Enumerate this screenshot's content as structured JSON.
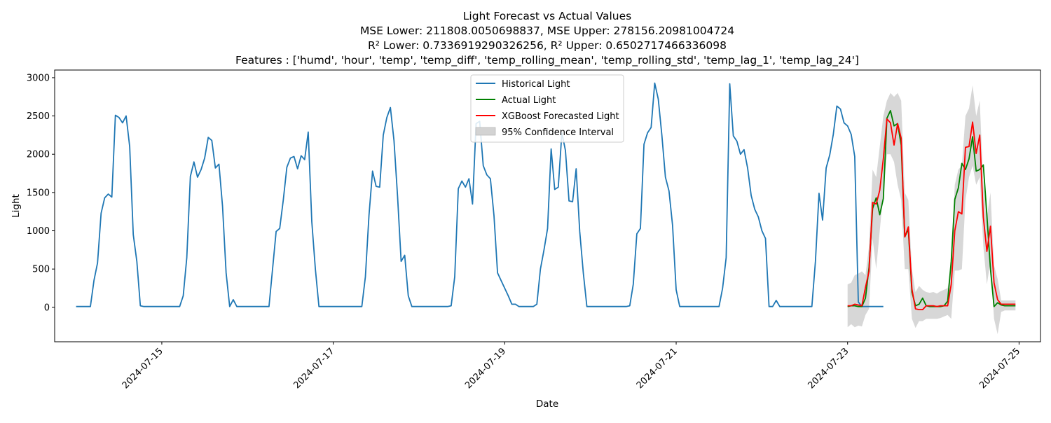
{
  "chart_data": {
    "type": "line",
    "title_lines": [
      "Light Forecast vs Actual Values",
      "MSE Lower: 211808.0050698837, MSE Upper: 278156.20981004724",
      "R² Lower: 0.7336919290326256, R² Upper: 0.6502717466336098",
      "Features : ['humd', 'hour', 'temp', 'temp_diff', 'temp_rolling_mean', 'temp_rolling_std', 'temp_lag_1', 'temp_lag_24']"
    ],
    "xlabel": "Date",
    "ylabel": "Light",
    "x_axis_type": "datetime",
    "xlim": [
      "2024-07-13T18:00",
      "2024-07-25T06:00"
    ],
    "ylim": [
      -450,
      3100
    ],
    "yticks": [
      0,
      500,
      1000,
      1500,
      2000,
      2500,
      3000
    ],
    "xticks": [
      "2024-07-15",
      "2024-07-17",
      "2024-07-19",
      "2024-07-21",
      "2024-07-23",
      "2024-07-25"
    ],
    "grid": false,
    "legend_position": "top-center",
    "colors": {
      "historical": "#1f77b4",
      "actual": "#008000",
      "forecast": "#ff0000",
      "confidence": "#d3d3d3"
    },
    "legend": [
      {
        "label": "Historical Light",
        "type": "line",
        "color": "#1f77b4"
      },
      {
        "label": "Actual Light",
        "type": "line",
        "color": "#008000"
      },
      {
        "label": "XGBoost Forecasted Light",
        "type": "line",
        "color": "#ff0000"
      },
      {
        "label": "95% Confidence Interval",
        "type": "patch",
        "color": "#d3d3d3"
      }
    ],
    "series": [
      {
        "name": "Historical Light",
        "start": "2024-07-14T00:00",
        "step_hours": 1,
        "values": [
          10,
          10,
          10,
          10,
          10,
          350,
          580,
          1230,
          1430,
          1480,
          1440,
          2510,
          2480,
          2410,
          2500,
          2100,
          950,
          600,
          20,
          10,
          10,
          10,
          10,
          10,
          10,
          10,
          10,
          10,
          10,
          10,
          150,
          650,
          1710,
          1900,
          1700,
          1800,
          1950,
          2220,
          2180,
          1820,
          1870,
          1320,
          450,
          10,
          100,
          10,
          10,
          10,
          10,
          10,
          10,
          10,
          10,
          10,
          10,
          500,
          990,
          1030,
          1400,
          1830,
          1950,
          1970,
          1810,
          1980,
          1930,
          2290,
          1120,
          500,
          10,
          10,
          10,
          10,
          10,
          10,
          10,
          10,
          10,
          10,
          10,
          10,
          10,
          400,
          1200,
          1780,
          1580,
          1570,
          2250,
          2480,
          2610,
          2180,
          1450,
          600,
          680,
          150,
          10,
          10,
          10,
          10,
          10,
          10,
          10,
          10,
          10,
          10,
          10,
          20,
          400,
          1550,
          1650,
          1570,
          1680,
          1350,
          2400,
          2430,
          1850,
          1730,
          1680,
          1200,
          450,
          350,
          250,
          150,
          40,
          40,
          10,
          10,
          10,
          10,
          10,
          40,
          500,
          750,
          1030,
          2070,
          1540,
          1570,
          2280,
          2050,
          1390,
          1380,
          1810,
          990,
          450,
          10,
          10,
          10,
          10,
          10,
          10,
          10,
          10,
          10,
          10,
          10,
          10,
          20,
          300,
          960,
          1030,
          2130,
          2280,
          2350,
          2930,
          2720,
          2250,
          1700,
          1520,
          1070,
          230,
          10,
          10,
          10,
          10,
          10,
          10,
          10,
          10,
          10,
          10,
          10,
          10,
          250,
          650,
          2920,
          2240,
          2170,
          2000,
          2060,
          1820,
          1460,
          1280,
          1180,
          1000,
          900,
          10,
          10,
          90,
          10,
          10,
          10,
          10,
          10,
          10,
          10,
          10,
          10,
          10,
          600,
          1490,
          1140,
          1820,
          1990,
          2260,
          2630,
          2590,
          2410,
          2370,
          2260,
          1970,
          70,
          10,
          10,
          10,
          10,
          10,
          10,
          10
        ]
      },
      {
        "name": "Actual Light",
        "start": "2024-07-23T00:00",
        "step_hours": 1,
        "values": [
          10,
          20,
          20,
          10,
          10,
          120,
          520,
          1290,
          1430,
          1210,
          1420,
          2470,
          2570,
          2370,
          2400,
          2120,
          920,
          1020,
          200,
          20,
          40,
          120,
          20,
          10,
          10,
          10,
          10,
          20,
          80,
          600,
          1410,
          1560,
          1880,
          1800,
          1940,
          2230,
          1780,
          1800,
          1860,
          1200,
          500,
          10,
          60,
          30,
          20,
          20,
          20,
          20
        ]
      },
      {
        "name": "XGBoost Forecasted Light",
        "start": "2024-07-23T00:00",
        "step_hours": 1,
        "values": [
          20,
          20,
          40,
          30,
          20,
          260,
          470,
          1370,
          1350,
          1530,
          1940,
          2460,
          2410,
          2120,
          2400,
          2210,
          920,
          1050,
          240,
          -20,
          -30,
          -30,
          20,
          20,
          20,
          10,
          20,
          20,
          20,
          300,
          1000,
          1250,
          1220,
          2090,
          2100,
          2420,
          2010,
          2250,
          1180,
          730,
          1060,
          320,
          100,
          40,
          40,
          40,
          40,
          40
        ]
      },
      {
        "name": "95% Confidence Interval",
        "type": "band",
        "start": "2024-07-23T00:00",
        "step_hours": 1,
        "lower": [
          -260,
          -220,
          -260,
          -240,
          -250,
          -100,
          -20,
          900,
          500,
          1000,
          1500,
          2000,
          2000,
          1900,
          1600,
          1400,
          500,
          500,
          -150,
          -270,
          -180,
          -180,
          -150,
          -150,
          -150,
          -150,
          -140,
          -120,
          -100,
          -150,
          480,
          480,
          500,
          1400,
          1700,
          1850,
          1600,
          1700,
          800,
          300,
          600,
          -150,
          -350,
          -60,
          -40,
          -40,
          -40,
          -40
        ],
        "upper": [
          300,
          320,
          420,
          440,
          470,
          420,
          800,
          1800,
          1700,
          2100,
          2500,
          2700,
          2800,
          2750,
          2800,
          2700,
          1500,
          1400,
          500,
          200,
          280,
          230,
          200,
          190,
          200,
          180,
          210,
          230,
          250,
          580,
          1600,
          1800,
          1850,
          2500,
          2600,
          2900,
          2500,
          2700,
          1600,
          1180,
          1500,
          550,
          370,
          90,
          90,
          90,
          90,
          90
        ]
      }
    ]
  }
}
